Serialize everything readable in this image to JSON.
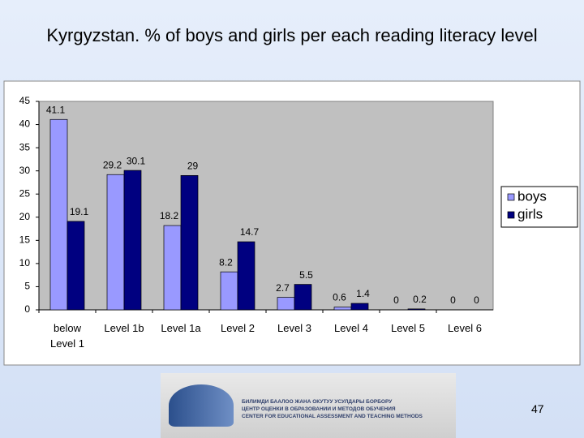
{
  "chart_data": {
    "type": "bar",
    "title": "Kyrgyzstan. % of boys and girls per each reading literacy level",
    "categories": [
      "below Level 1",
      "Level 1b",
      "Level 1a",
      "Level 2",
      "Level 3",
      "Level 4",
      "Level 5",
      "Level 6"
    ],
    "series": [
      {
        "name": "boys",
        "color": "#9999ff",
        "values": [
          41.1,
          29.2,
          18.2,
          8.2,
          2.7,
          0.6,
          0,
          0
        ]
      },
      {
        "name": "girls",
        "color": "#000080",
        "values": [
          19.1,
          30.1,
          29,
          14.7,
          5.5,
          1.4,
          0.2,
          0
        ]
      }
    ],
    "ylim": [
      0,
      45
    ],
    "yticks": [
      0,
      5,
      10,
      15,
      20,
      25,
      30,
      35,
      40,
      45
    ],
    "grid": false,
    "legend": "right"
  },
  "logo": {
    "lines": [
      "БИЛИМДИ БААЛОО ЖАНА ОКУТУУ УСУЛДАРЫ БОРБОРУ",
      "ЦЕНТР ОЦЕНКИ В ОБРАЗОВАНИИ И МЕТОДОВ ОБУЧЕНИЯ",
      "CENTER FOR EDUCATIONAL ASSESSMENT AND TEACHING METHODS"
    ]
  },
  "slide_number": 47
}
